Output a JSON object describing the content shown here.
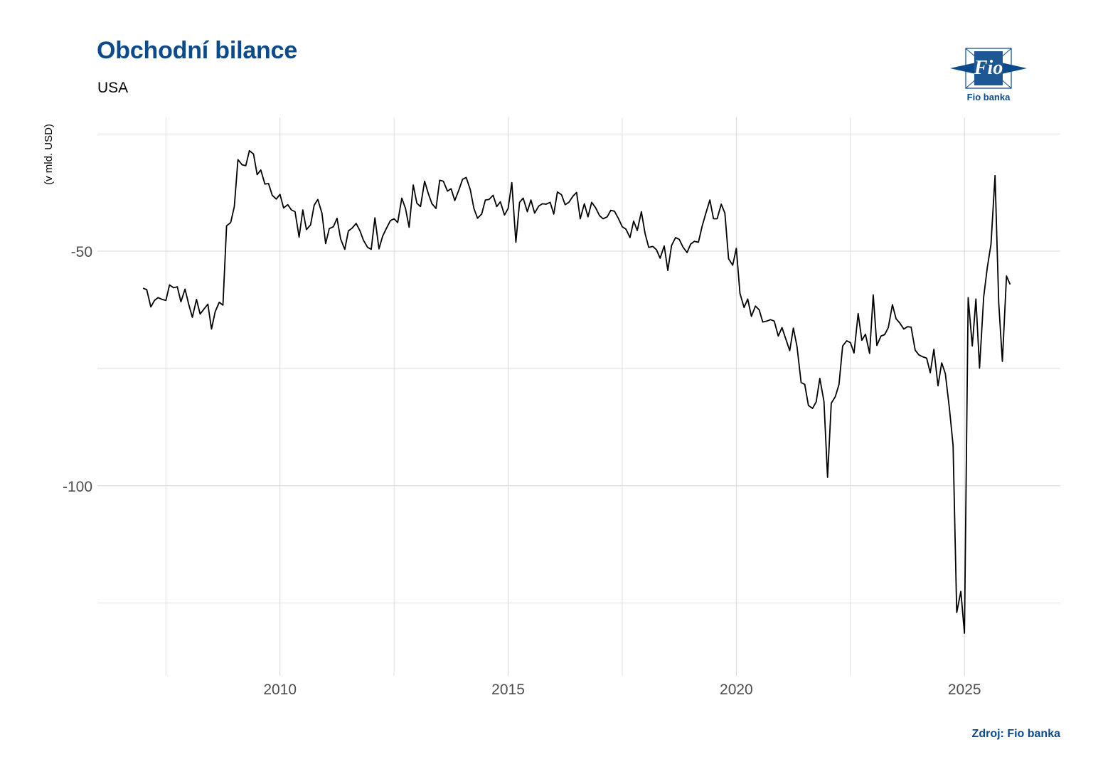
{
  "header": {
    "title": "Obchodní bilance",
    "subtitle": "USA",
    "logo_text": "Fio banka",
    "logo_mark": "Fio"
  },
  "footer": {
    "source": "Zdroj: Fio banka"
  },
  "colors": {
    "brand": "#0b4a8b",
    "line": "#000000",
    "grid": "#d9d9d9"
  },
  "chart_data": {
    "type": "line",
    "title": "Obchodní bilance",
    "subtitle": "USA",
    "ylabel": "(v mld. USD)",
    "xlabel": "",
    "xlim": [
      2006.0,
      2027.1
    ],
    "ylim": [
      -140.5,
      -21.5
    ],
    "x_ticks": [
      2010,
      2015,
      2020,
      2025
    ],
    "x_tick_labels": [
      "2010",
      "2015",
      "2020",
      "2025"
    ],
    "y_ticks": [
      -50,
      -100
    ],
    "y_tick_labels": [
      "-50",
      "-100"
    ],
    "grid": true,
    "series": [
      {
        "name": "",
        "points": [
          [
            2007.0,
            -57.9
          ],
          [
            2007.08,
            -58.2
          ],
          [
            2007.17,
            -61.9
          ],
          [
            2007.25,
            -60.5
          ],
          [
            2007.33,
            -59.9
          ],
          [
            2007.42,
            -60.3
          ],
          [
            2007.5,
            -60.5
          ],
          [
            2007.58,
            -57.2
          ],
          [
            2007.67,
            -57.8
          ],
          [
            2007.75,
            -57.6
          ],
          [
            2007.83,
            -60.8
          ],
          [
            2007.92,
            -58.1
          ],
          [
            2008.0,
            -61.3
          ],
          [
            2008.08,
            -64.1
          ],
          [
            2008.17,
            -60.3
          ],
          [
            2008.25,
            -63.4
          ],
          [
            2008.33,
            -62.4
          ],
          [
            2008.42,
            -61.3
          ],
          [
            2008.5,
            -66.6
          ],
          [
            2008.58,
            -62.9
          ],
          [
            2008.67,
            -60.9
          ],
          [
            2008.75,
            -61.5
          ],
          [
            2008.83,
            -44.6
          ],
          [
            2008.92,
            -43.9
          ],
          [
            2009.0,
            -40.5
          ],
          [
            2009.08,
            -30.5
          ],
          [
            2009.17,
            -31.6
          ],
          [
            2009.25,
            -31.8
          ],
          [
            2009.33,
            -28.6
          ],
          [
            2009.42,
            -29.3
          ],
          [
            2009.5,
            -33.7
          ],
          [
            2009.58,
            -32.7
          ],
          [
            2009.67,
            -35.7
          ],
          [
            2009.75,
            -35.6
          ],
          [
            2009.83,
            -38.1
          ],
          [
            2009.92,
            -38.9
          ],
          [
            2010.0,
            -37.9
          ],
          [
            2010.08,
            -40.8
          ],
          [
            2010.17,
            -40.1
          ],
          [
            2010.25,
            -41.2
          ],
          [
            2010.33,
            -41.6
          ],
          [
            2010.42,
            -47.0
          ],
          [
            2010.5,
            -41.2
          ],
          [
            2010.58,
            -45.4
          ],
          [
            2010.67,
            -44.4
          ],
          [
            2010.75,
            -40.2
          ],
          [
            2010.83,
            -39.0
          ],
          [
            2010.92,
            -41.9
          ],
          [
            2011.0,
            -48.4
          ],
          [
            2011.08,
            -45.2
          ],
          [
            2011.17,
            -44.8
          ],
          [
            2011.25,
            -43.0
          ],
          [
            2011.33,
            -47.4
          ],
          [
            2011.42,
            -49.6
          ],
          [
            2011.5,
            -45.7
          ],
          [
            2011.58,
            -45.1
          ],
          [
            2011.67,
            -44.1
          ],
          [
            2011.75,
            -45.6
          ],
          [
            2011.83,
            -47.7
          ],
          [
            2011.92,
            -49.2
          ],
          [
            2012.0,
            -49.6
          ],
          [
            2012.08,
            -42.9
          ],
          [
            2012.17,
            -49.5
          ],
          [
            2012.25,
            -46.8
          ],
          [
            2012.33,
            -45.2
          ],
          [
            2012.42,
            -43.5
          ],
          [
            2012.5,
            -43.1
          ],
          [
            2012.58,
            -43.9
          ],
          [
            2012.67,
            -38.7
          ],
          [
            2012.75,
            -40.9
          ],
          [
            2012.83,
            -44.9
          ],
          [
            2012.92,
            -35.9
          ],
          [
            2013.0,
            -39.8
          ],
          [
            2013.08,
            -40.5
          ],
          [
            2013.17,
            -35.1
          ],
          [
            2013.25,
            -37.7
          ],
          [
            2013.33,
            -39.9
          ],
          [
            2013.42,
            -40.9
          ],
          [
            2013.5,
            -34.9
          ],
          [
            2013.58,
            -35.1
          ],
          [
            2013.67,
            -37.2
          ],
          [
            2013.75,
            -36.7
          ],
          [
            2013.83,
            -39.2
          ],
          [
            2013.92,
            -37.0
          ],
          [
            2014.0,
            -34.7
          ],
          [
            2014.08,
            -34.3
          ],
          [
            2014.17,
            -36.9
          ],
          [
            2014.25,
            -40.9
          ],
          [
            2014.33,
            -43.0
          ],
          [
            2014.42,
            -42.1
          ],
          [
            2014.5,
            -39.1
          ],
          [
            2014.58,
            -39.0
          ],
          [
            2014.67,
            -38.1
          ],
          [
            2014.75,
            -40.5
          ],
          [
            2014.83,
            -39.5
          ],
          [
            2014.92,
            -42.3
          ],
          [
            2015.0,
            -40.9
          ],
          [
            2015.08,
            -35.4
          ],
          [
            2015.17,
            -48.1
          ],
          [
            2015.25,
            -39.6
          ],
          [
            2015.33,
            -38.7
          ],
          [
            2015.42,
            -41.6
          ],
          [
            2015.5,
            -39.1
          ],
          [
            2015.58,
            -41.9
          ],
          [
            2015.67,
            -40.4
          ],
          [
            2015.75,
            -39.9
          ],
          [
            2015.83,
            -40.0
          ],
          [
            2015.92,
            -39.6
          ],
          [
            2016.0,
            -42.1
          ],
          [
            2016.08,
            -37.4
          ],
          [
            2016.17,
            -38.0
          ],
          [
            2016.25,
            -40.1
          ],
          [
            2016.33,
            -39.6
          ],
          [
            2016.42,
            -38.3
          ],
          [
            2016.5,
            -37.5
          ],
          [
            2016.58,
            -43.1
          ],
          [
            2016.67,
            -39.9
          ],
          [
            2016.75,
            -42.7
          ],
          [
            2016.83,
            -39.6
          ],
          [
            2016.92,
            -40.8
          ],
          [
            2017.0,
            -42.4
          ],
          [
            2017.08,
            -43.1
          ],
          [
            2017.17,
            -42.7
          ],
          [
            2017.25,
            -41.3
          ],
          [
            2017.33,
            -41.5
          ],
          [
            2017.42,
            -43.1
          ],
          [
            2017.5,
            -44.8
          ],
          [
            2017.58,
            -45.3
          ],
          [
            2017.67,
            -47.1
          ],
          [
            2017.75,
            -43.6
          ],
          [
            2017.83,
            -45.6
          ],
          [
            2017.92,
            -41.6
          ],
          [
            2018.0,
            -46.2
          ],
          [
            2018.08,
            -49.2
          ],
          [
            2018.17,
            -49.0
          ],
          [
            2018.25,
            -49.7
          ],
          [
            2018.33,
            -51.5
          ],
          [
            2018.42,
            -48.9
          ],
          [
            2018.5,
            -54.1
          ],
          [
            2018.58,
            -48.8
          ],
          [
            2018.67,
            -47.1
          ],
          [
            2018.75,
            -47.5
          ],
          [
            2018.83,
            -49.1
          ],
          [
            2018.92,
            -50.3
          ],
          [
            2019.0,
            -48.5
          ],
          [
            2019.08,
            -47.9
          ],
          [
            2019.17,
            -48.1
          ],
          [
            2019.25,
            -44.7
          ],
          [
            2019.33,
            -42.0
          ],
          [
            2019.42,
            -39.1
          ],
          [
            2019.5,
            -43.1
          ],
          [
            2019.58,
            -43.1
          ],
          [
            2019.67,
            -40.0
          ],
          [
            2019.75,
            -41.9
          ],
          [
            2019.83,
            -51.6
          ],
          [
            2019.92,
            -53.0
          ],
          [
            2020.0,
            -49.4
          ],
          [
            2020.08,
            -59.0
          ],
          [
            2020.17,
            -62.0
          ],
          [
            2020.25,
            -60.2
          ],
          [
            2020.33,
            -63.9
          ],
          [
            2020.42,
            -61.7
          ],
          [
            2020.5,
            -62.5
          ],
          [
            2020.58,
            -65.1
          ],
          [
            2020.67,
            -64.9
          ],
          [
            2020.75,
            -64.6
          ],
          [
            2020.83,
            -64.9
          ],
          [
            2020.92,
            -68.1
          ],
          [
            2021.0,
            -66.3
          ],
          [
            2021.08,
            -68.6
          ],
          [
            2021.17,
            -71.2
          ],
          [
            2021.25,
            -66.4
          ],
          [
            2021.33,
            -70.3
          ],
          [
            2021.42,
            -78.0
          ],
          [
            2021.5,
            -78.4
          ],
          [
            2021.58,
            -82.9
          ],
          [
            2021.67,
            -83.5
          ],
          [
            2021.75,
            -82.1
          ],
          [
            2021.83,
            -77.1
          ],
          [
            2021.92,
            -82.0
          ],
          [
            2022.0,
            -98.2
          ],
          [
            2022.08,
            -82.4
          ],
          [
            2022.17,
            -81.0
          ],
          [
            2022.25,
            -78.4
          ],
          [
            2022.33,
            -70.2
          ],
          [
            2022.42,
            -69.1
          ],
          [
            2022.5,
            -69.5
          ],
          [
            2022.58,
            -71.7
          ],
          [
            2022.67,
            -63.3
          ],
          [
            2022.75,
            -69.0
          ],
          [
            2022.83,
            -67.7
          ],
          [
            2022.92,
            -71.8
          ],
          [
            2023.0,
            -59.3
          ],
          [
            2023.08,
            -70.1
          ],
          [
            2023.17,
            -68.1
          ],
          [
            2023.25,
            -67.8
          ],
          [
            2023.33,
            -66.3
          ],
          [
            2023.42,
            -61.4
          ],
          [
            2023.5,
            -64.4
          ],
          [
            2023.58,
            -65.3
          ],
          [
            2023.67,
            -66.6
          ],
          [
            2023.75,
            -66.1
          ],
          [
            2023.83,
            -66.2
          ],
          [
            2023.92,
            -71.1
          ],
          [
            2024.0,
            -72.1
          ],
          [
            2024.08,
            -72.5
          ],
          [
            2024.17,
            -72.8
          ],
          [
            2024.25,
            -75.9
          ],
          [
            2024.33,
            -70.9
          ],
          [
            2024.42,
            -78.7
          ],
          [
            2024.5,
            -73.8
          ],
          [
            2024.58,
            -76.1
          ],
          [
            2024.67,
            -83.6
          ],
          [
            2024.75,
            -91.4
          ],
          [
            2024.83,
            -127.0
          ],
          [
            2024.92,
            -122.5
          ],
          [
            2025.0,
            -131.4
          ],
          [
            2025.08,
            -59.9
          ],
          [
            2025.17,
            -70.2
          ],
          [
            2025.25,
            -60.2
          ],
          [
            2025.33,
            -74.9
          ],
          [
            2025.42,
            -59.8
          ],
          [
            2025.5,
            -53.5
          ],
          [
            2025.58,
            -48.5
          ],
          [
            2025.67,
            -33.9
          ],
          [
            2025.75,
            -61.1
          ],
          [
            2025.83,
            -73.5
          ],
          [
            2025.92,
            -55.3
          ],
          [
            2026.0,
            -57.1
          ]
        ]
      }
    ]
  }
}
